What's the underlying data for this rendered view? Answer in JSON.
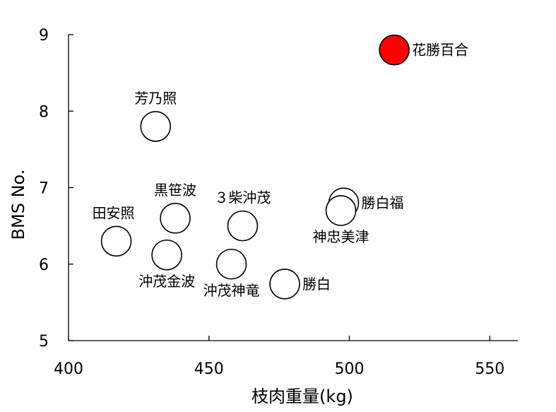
{
  "chart_data": {
    "type": "scatter",
    "xlabel": "枝肉重量(kg)",
    "ylabel": "BMS No.",
    "xlim": [
      400,
      560
    ],
    "ylim": [
      5,
      9
    ],
    "xticks": [
      400,
      450,
      500,
      550
    ],
    "yticks": [
      5,
      6,
      7,
      8,
      9
    ],
    "grid": false,
    "legend": "none",
    "default_fill": "#ffffff",
    "highlight_fill": "#ff0000",
    "points": [
      {
        "label": "花勝百合",
        "x": 516,
        "y": 8.8,
        "highlight": true,
        "label_pos": "right"
      },
      {
        "label": "芳乃照",
        "x": 431,
        "y": 7.8,
        "label_pos": "above"
      },
      {
        "label": "勝白福",
        "x": 498,
        "y": 6.8,
        "label_pos": "right"
      },
      {
        "label": "神忠美津",
        "x": 497,
        "y": 6.7,
        "label_pos": "below"
      },
      {
        "label": "黒笹波",
        "x": 438,
        "y": 6.6,
        "label_pos": "above"
      },
      {
        "label": "３柴沖茂",
        "x": 462,
        "y": 6.5,
        "label_pos": "above"
      },
      {
        "label": "田安照",
        "x": 417,
        "y": 6.3,
        "label_pos": "above-left"
      },
      {
        "label": "沖茂金波",
        "x": 435,
        "y": 6.12,
        "label_pos": "below"
      },
      {
        "label": "沖茂神竜",
        "x": 458,
        "y": 6.0,
        "label_pos": "below"
      },
      {
        "label": "勝白",
        "x": 477,
        "y": 5.74,
        "label_pos": "right"
      }
    ]
  }
}
